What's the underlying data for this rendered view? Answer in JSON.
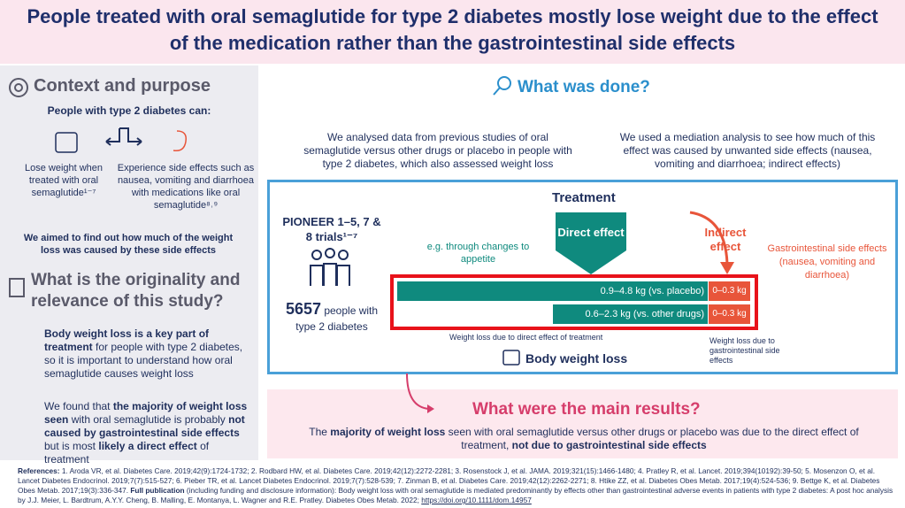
{
  "header": {
    "title": "People treated with oral semaglutide for type 2 diabetes mostly lose weight due to the effect of the medication rather than the gastrointestinal side effects"
  },
  "context": {
    "heading": "Context and purpose",
    "intro": "People with type 2 diabetes can:",
    "option1": "Lose weight when treated with oral semaglutide¹⁻⁷",
    "option2": "Experience side effects such as nausea, vomiting and diarrhoea with medications like oral semaglutide⁸˒⁹",
    "aim": "We aimed to find out how much of the weight loss was caused by these side effects"
  },
  "originality": {
    "heading": "What is the originality and relevance of this study?",
    "point1": [
      "Body weight loss is a key part of treatment",
      " for people with type 2 diabetes, so it is important to understand how oral semaglutide causes weight loss"
    ],
    "point2": [
      "We found that ",
      "the majority of weight loss seen",
      " with oral semaglutide is probably ",
      "not caused by gastrointestinal side effects",
      " but is most ",
      "likely a direct effect",
      " of treatment"
    ]
  },
  "methods": {
    "heading": "What was done?",
    "step1": "We analysed data from previous studies of oral semaglutide versus other drugs or placebo in people with type 2 diabetes, which also assessed weight loss",
    "step2": "We used a mediation analysis to see how much of this effect was caused by unwanted side effects (nausea, vomiting and diarrhoea; indirect effects)"
  },
  "diagram": {
    "trials": "PIONEER 1–5, 7 & 8 trials¹⁻⁷",
    "participants_number": "5657",
    "participants_text": "people with type 2 diabetes",
    "treatment": "Treatment",
    "appetite": "e.g. through changes to appetite",
    "direct": "Direct effect",
    "indirect": "Indirect effect",
    "gi": "Gastrointestinal side effects (nausea, vomiting and diarrhoea)",
    "bars": [
      {
        "direct": "0.9–4.8 kg (vs. placebo)",
        "indirect": "0–0.3 kg"
      },
      {
        "direct": "0.6–2.3 kg (vs. other drugs)",
        "indirect": "0–0.3 kg"
      }
    ],
    "direct_caption": "Weight loss due to direct effect of treatment",
    "indirect_caption": "Weight loss due to gastrointestinal side effects",
    "outcome": "Body weight loss"
  },
  "results": {
    "heading": "What were the main results?",
    "text": [
      "The ",
      "majority of weight loss",
      " seen with oral semaglutide versus other drugs or placebo was due to the direct effect of treatment, ",
      "not due to gastrointestinal side effects"
    ]
  },
  "references": [
    "References:",
    " 1. Aroda VR, et al. Diabetes Care. 2019;42(9):1724-1732; 2. Rodbard HW, et al. Diabetes Care. 2019;42(12):2272-2281; 3. Rosenstock J, et al. JAMA. 2019;321(15):1466-1480; 4. Pratley R, et al. Lancet. 2019;394(10192):39-50; 5. Mosenzon O, et al. Lancet Diabetes Endocrinol. 2019;7(7):515-527; 6. Pieber TR, et al. Lancet Diabetes Endocrinol. 2019;7(7):528-539; 7. Zinman B, et al. Diabetes Care. 2019;42(12):2262-2271; 8. Htike ZZ, et al. Diabetes Obes Metab. 2017;19(4):524-536; 9. Bettge K, et al. Diabetes Obes Metab. 2017;19(3):336-347. ",
    "Full publication",
    " (including funding and disclosure information): Body weight loss with oral semaglutide is mediated predominantly by effects other than gastrointestinal adverse events in patients with type 2 diabetes: A post hoc analysis by J.J. Meier, L. Bardtrum, A.Y.Y. Cheng, B. Malling, E. Montanya, L. Wagner and R.E. Pratley. Diabetes Obes Metab. 2022; ",
    "https://doi.org/10.1111/dom.14957"
  ]
}
